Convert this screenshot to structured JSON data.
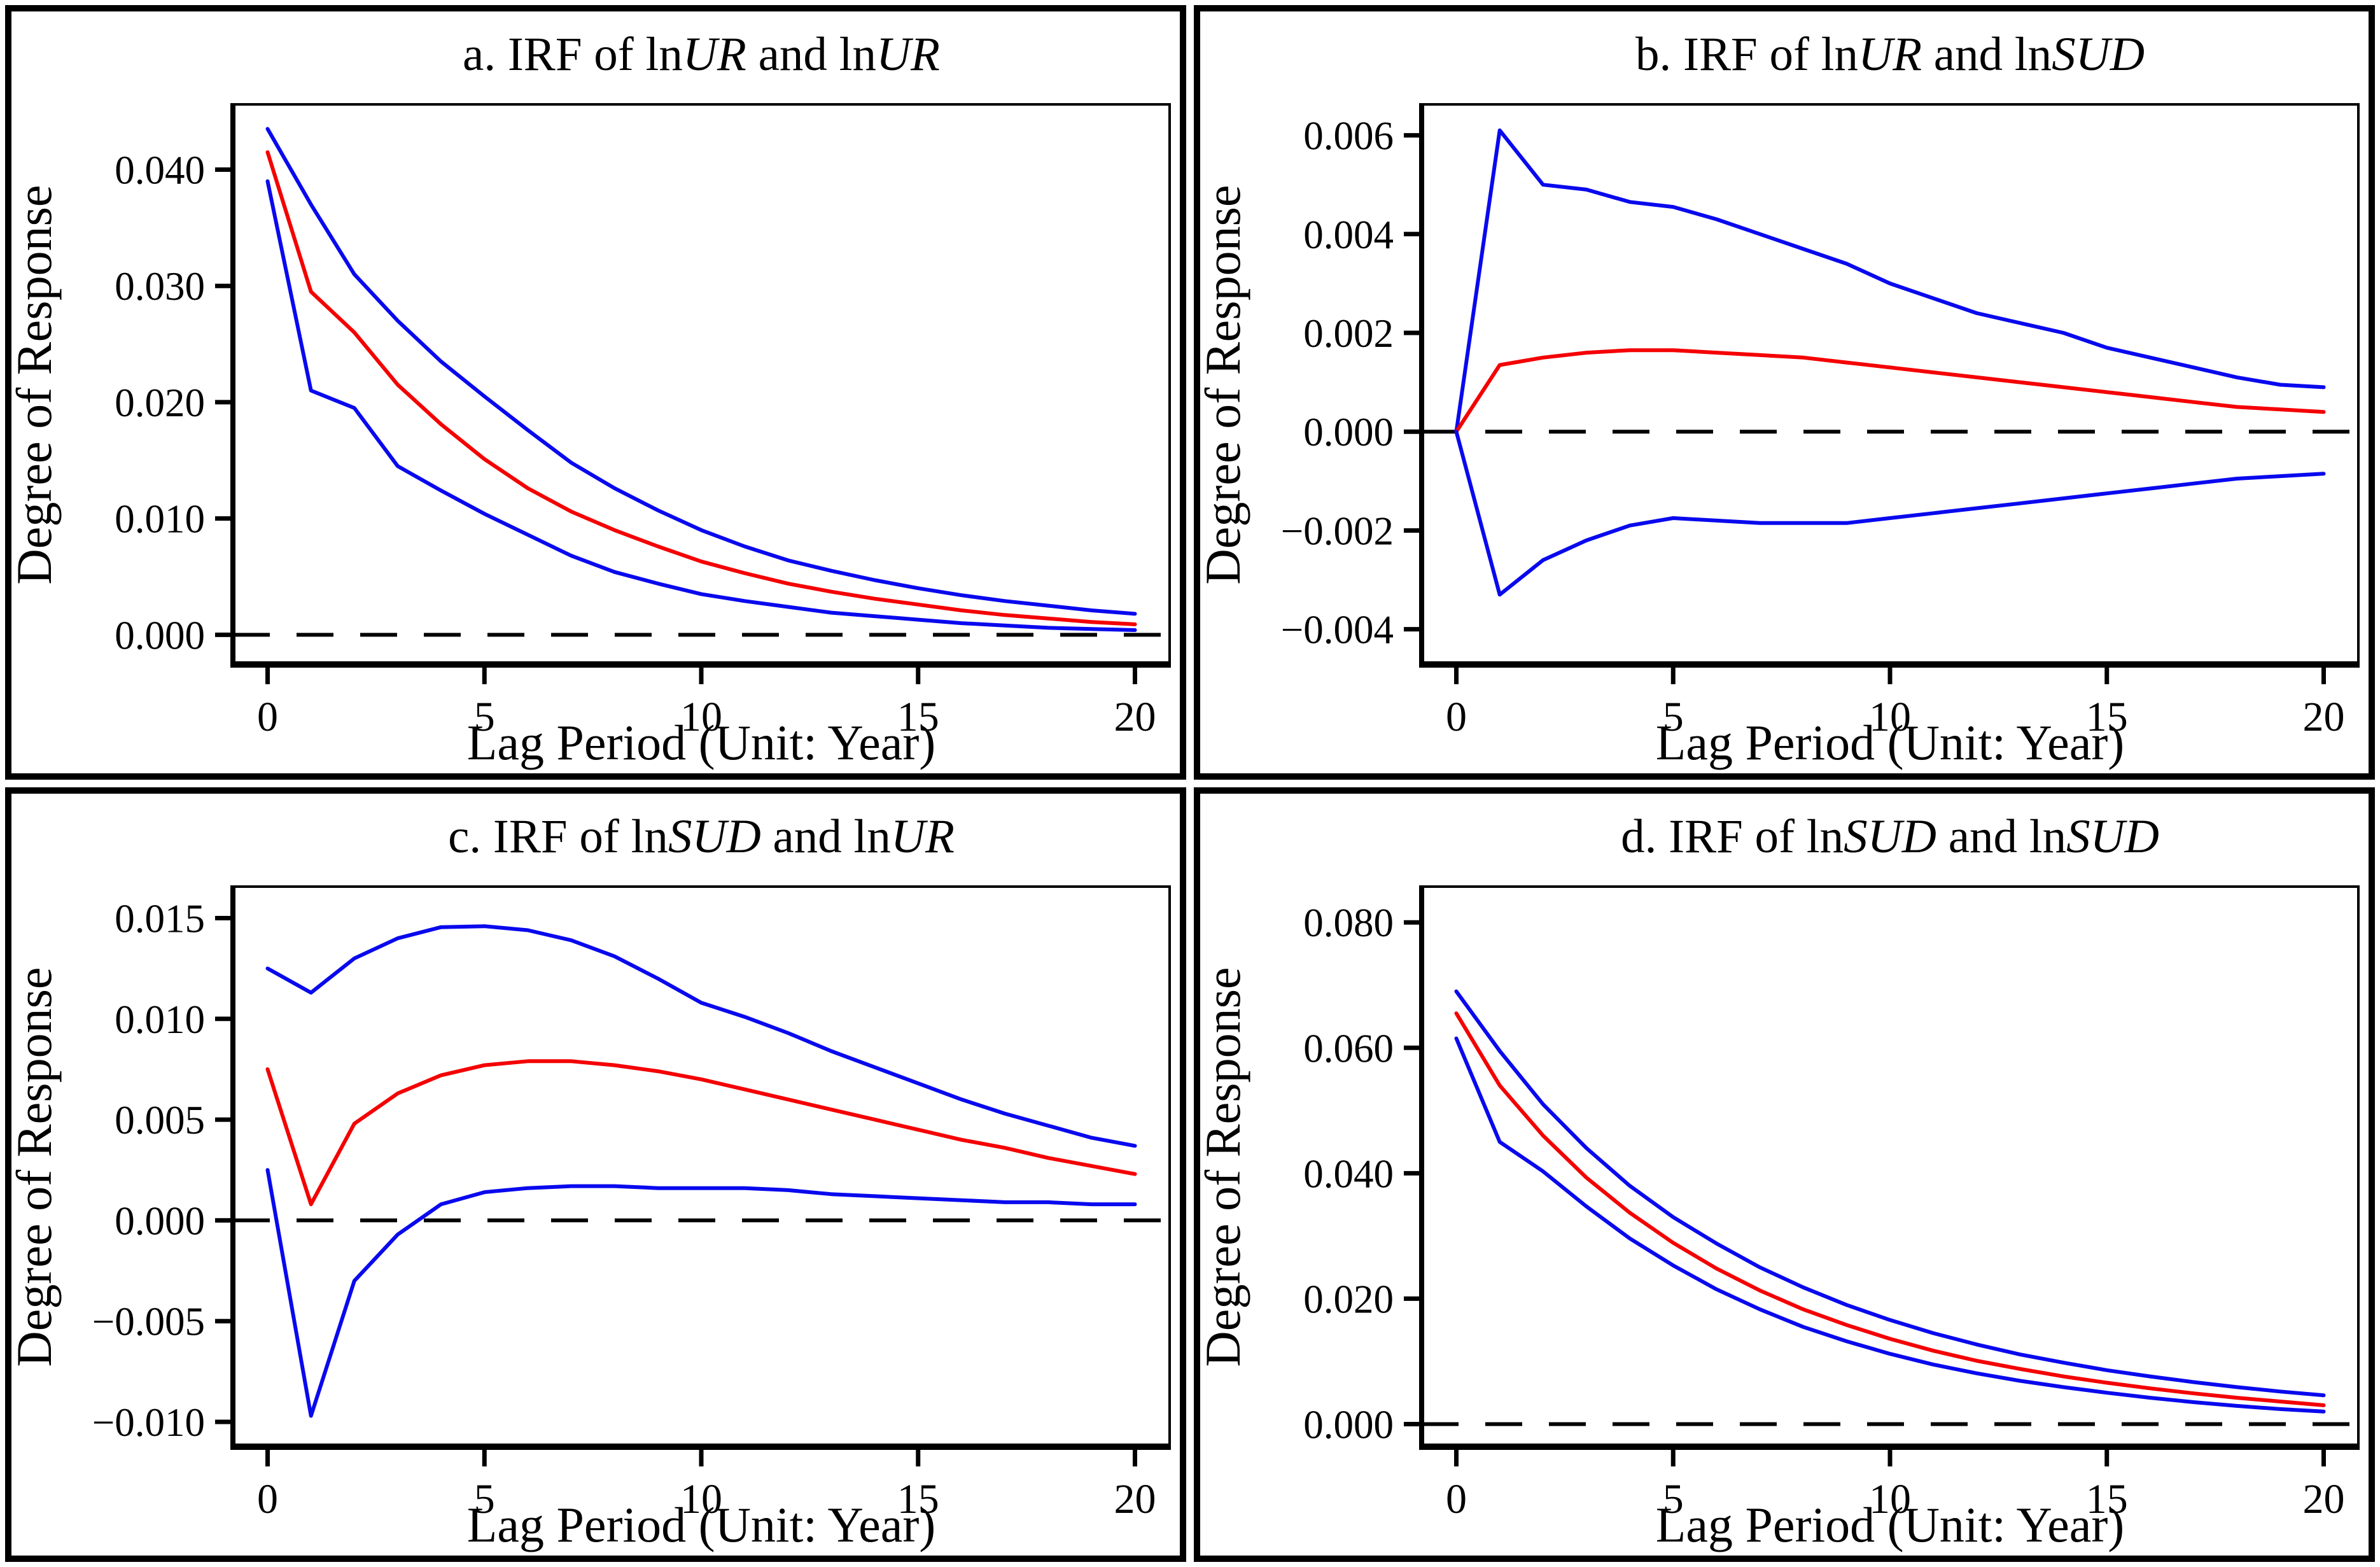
{
  "figure": {
    "name": "Impulse response functions of lnUR and lnSUD",
    "colors": {
      "center": "#f40000",
      "band": "#0909ee",
      "zero_line": "#000000",
      "frame": "#000000",
      "background": "#ffffff"
    }
  },
  "chart_data": [
    {
      "type": "line",
      "panel": "a",
      "title_segments": [
        {
          "text": "a. IRF of ln",
          "italic": false
        },
        {
          "text": "UR",
          "italic": true
        },
        {
          "text": " and ln",
          "italic": false
        },
        {
          "text": "UR",
          "italic": true
        }
      ],
      "xlabel": "Lag Period (Unit: Year)",
      "ylabel": "Degree of Response",
      "x": [
        0,
        1,
        2,
        3,
        4,
        5,
        6,
        7,
        8,
        9,
        10,
        11,
        12,
        13,
        14,
        15,
        16,
        17,
        18,
        19,
        20
      ],
      "xlim": [
        -0.8,
        20.8
      ],
      "ylim": [
        -0.0025,
        0.0455
      ],
      "xticks": [
        0,
        5,
        10,
        15,
        20
      ],
      "xtick_labels": [
        "0",
        "5",
        "10",
        "15",
        "20"
      ],
      "yticks": [
        0.04,
        0.03,
        0.02,
        0.01,
        0.0
      ],
      "ytick_labels": [
        "0.040",
        "0.030",
        "0.020",
        "0.010",
        "0.000"
      ],
      "zero_line_dashed": true,
      "grid": false,
      "legend": null,
      "series": [
        {
          "name": "upper-confidence-band",
          "color": "band",
          "values": [
            0.0435,
            0.037,
            0.031,
            0.027,
            0.0235,
            0.0205,
            0.0176,
            0.0148,
            0.0126,
            0.0107,
            0.009,
            0.0076,
            0.0064,
            0.0055,
            0.0047,
            0.004,
            0.0034,
            0.0029,
            0.0025,
            0.0021,
            0.0018
          ]
        },
        {
          "name": "center-irf",
          "color": "center",
          "values": [
            0.0415,
            0.0295,
            0.026,
            0.0215,
            0.0181,
            0.0151,
            0.0126,
            0.0106,
            0.009,
            0.0076,
            0.0063,
            0.0053,
            0.0044,
            0.0037,
            0.0031,
            0.0026,
            0.0021,
            0.0017,
            0.0014,
            0.0011,
            0.0009
          ]
        },
        {
          "name": "lower-confidence-band",
          "color": "band",
          "values": [
            0.039,
            0.021,
            0.0195,
            0.0145,
            0.0124,
            0.0104,
            0.0086,
            0.0068,
            0.0054,
            0.0044,
            0.0035,
            0.0029,
            0.0024,
            0.0019,
            0.0016,
            0.0013,
            0.001,
            0.0008,
            0.0006,
            0.0005,
            0.0004
          ]
        }
      ]
    },
    {
      "type": "line",
      "panel": "b",
      "title_segments": [
        {
          "text": "b. IRF of ln",
          "italic": false
        },
        {
          "text": "UR",
          "italic": true
        },
        {
          "text": " and ln",
          "italic": false
        },
        {
          "text": "SUD",
          "italic": true
        }
      ],
      "xlabel": "Lag Period (Unit: Year)",
      "ylabel": "Degree of Response",
      "x": [
        0,
        1,
        2,
        3,
        4,
        5,
        6,
        7,
        8,
        9,
        10,
        11,
        12,
        13,
        14,
        15,
        16,
        17,
        18,
        19,
        20
      ],
      "xlim": [
        -0.8,
        20.8
      ],
      "ylim": [
        -0.0047,
        0.0066
      ],
      "xticks": [
        0,
        5,
        10,
        15,
        20
      ],
      "xtick_labels": [
        "0",
        "5",
        "10",
        "15",
        "20"
      ],
      "yticks": [
        0.006,
        0.004,
        0.002,
        0.0,
        -0.002,
        -0.004
      ],
      "ytick_labels": [
        "0.006",
        "0.004",
        "0.002",
        "0.000",
        "−0.002",
        "−0.004"
      ],
      "zero_line_dashed": true,
      "grid": false,
      "legend": null,
      "series": [
        {
          "name": "upper-confidence-band",
          "color": "band",
          "values": [
            0.0,
            0.0061,
            0.005,
            0.0049,
            0.00465,
            0.00455,
            0.0043,
            0.004,
            0.0037,
            0.0034,
            0.003,
            0.0027,
            0.0024,
            0.0022,
            0.002,
            0.0017,
            0.0015,
            0.0013,
            0.0011,
            0.00095,
            0.0009
          ]
        },
        {
          "name": "center-irf",
          "color": "center",
          "values": [
            0.0,
            0.00135,
            0.0015,
            0.0016,
            0.00165,
            0.00165,
            0.0016,
            0.00155,
            0.0015,
            0.0014,
            0.0013,
            0.0012,
            0.0011,
            0.001,
            0.0009,
            0.0008,
            0.0007,
            0.0006,
            0.0005,
            0.00045,
            0.0004
          ]
        },
        {
          "name": "lower-confidence-band",
          "color": "band",
          "values": [
            0.0,
            -0.0033,
            -0.0026,
            -0.0022,
            -0.0019,
            -0.00175,
            -0.0018,
            -0.00185,
            -0.00185,
            -0.00185,
            -0.00175,
            -0.00165,
            -0.00155,
            -0.00145,
            -0.00135,
            -0.00125,
            -0.00115,
            -0.00105,
            -0.00095,
            -0.0009,
            -0.00085
          ]
        }
      ]
    },
    {
      "type": "line",
      "panel": "c",
      "title_segments": [
        {
          "text": "c. IRF of ln",
          "italic": false
        },
        {
          "text": "SUD",
          "italic": true
        },
        {
          "text": " and ln",
          "italic": false
        },
        {
          "text": "UR",
          "italic": true
        }
      ],
      "xlabel": "Lag Period (Unit: Year)",
      "ylabel": "Degree of Response",
      "x": [
        0,
        1,
        2,
        3,
        4,
        5,
        6,
        7,
        8,
        9,
        10,
        11,
        12,
        13,
        14,
        15,
        16,
        17,
        18,
        19,
        20
      ],
      "xlim": [
        -0.8,
        20.8
      ],
      "ylim": [
        -0.0112,
        0.0165
      ],
      "xticks": [
        0,
        5,
        10,
        15,
        20
      ],
      "xtick_labels": [
        "0",
        "5",
        "10",
        "15",
        "20"
      ],
      "yticks": [
        0.015,
        0.01,
        0.005,
        0.0,
        -0.005,
        -0.01
      ],
      "ytick_labels": [
        "0.015",
        "0.010",
        "0.005",
        "0.000",
        "−0.005",
        "−0.010"
      ],
      "zero_line_dashed": true,
      "grid": false,
      "legend": null,
      "series": [
        {
          "name": "upper-confidence-band",
          "color": "band",
          "values": [
            0.0125,
            0.0113,
            0.013,
            0.014,
            0.01455,
            0.0146,
            0.0144,
            0.0139,
            0.0131,
            0.012,
            0.0108,
            0.0101,
            0.0093,
            0.0084,
            0.0076,
            0.0068,
            0.006,
            0.0053,
            0.0047,
            0.0041,
            0.0037
          ]
        },
        {
          "name": "center-irf",
          "color": "center",
          "values": [
            0.0075,
            0.0008,
            0.0048,
            0.0063,
            0.0072,
            0.0077,
            0.0079,
            0.0079,
            0.0077,
            0.0074,
            0.007,
            0.0065,
            0.006,
            0.0055,
            0.005,
            0.0045,
            0.004,
            0.0036,
            0.0031,
            0.0027,
            0.0023
          ]
        },
        {
          "name": "lower-confidence-band",
          "color": "band",
          "values": [
            0.0025,
            -0.0097,
            -0.003,
            -0.0007,
            0.0008,
            0.0014,
            0.0016,
            0.0017,
            0.0017,
            0.0016,
            0.0016,
            0.0016,
            0.0015,
            0.0013,
            0.0012,
            0.0011,
            0.001,
            0.0009,
            0.0009,
            0.0008,
            0.0008
          ]
        }
      ]
    },
    {
      "type": "line",
      "panel": "d",
      "title_segments": [
        {
          "text": "d. IRF of ln",
          "italic": false
        },
        {
          "text": "SUD",
          "italic": true
        },
        {
          "text": " and ln",
          "italic": false
        },
        {
          "text": "SUD",
          "italic": true
        }
      ],
      "xlabel": "Lag Period (Unit: Year)",
      "ylabel": "Degree of Response",
      "x": [
        0,
        1,
        2,
        3,
        4,
        5,
        6,
        7,
        8,
        9,
        10,
        11,
        12,
        13,
        14,
        15,
        16,
        17,
        18,
        19,
        20
      ],
      "xlim": [
        -0.8,
        20.8
      ],
      "ylim": [
        -0.0035,
        0.0855
      ],
      "xticks": [
        0,
        5,
        10,
        15,
        20
      ],
      "xtick_labels": [
        "0",
        "5",
        "10",
        "15",
        "20"
      ],
      "yticks": [
        0.08,
        0.06,
        0.04,
        0.02,
        0.0
      ],
      "ytick_labels": [
        "0.080",
        "0.060",
        "0.040",
        "0.020",
        "0.000"
      ],
      "zero_line_dashed": true,
      "grid": false,
      "legend": null,
      "series": [
        {
          "name": "upper-confidence-band",
          "color": "band",
          "values": [
            0.069,
            0.0595,
            0.051,
            0.044,
            0.038,
            0.033,
            0.0288,
            0.025,
            0.0218,
            0.019,
            0.0166,
            0.0145,
            0.0127,
            0.0111,
            0.0098,
            0.0086,
            0.0076,
            0.0067,
            0.0059,
            0.0052,
            0.0046
          ]
        },
        {
          "name": "center-irf",
          "color": "center",
          "values": [
            0.0655,
            0.054,
            0.046,
            0.0393,
            0.0337,
            0.0289,
            0.0248,
            0.0213,
            0.0183,
            0.0158,
            0.0136,
            0.0117,
            0.0101,
            0.0088,
            0.0076,
            0.0066,
            0.0057,
            0.0049,
            0.0042,
            0.0036,
            0.003
          ]
        },
        {
          "name": "lower-confidence-band",
          "color": "band",
          "values": [
            0.0615,
            0.045,
            0.0403,
            0.0347,
            0.0296,
            0.0253,
            0.0215,
            0.0183,
            0.0155,
            0.0132,
            0.0112,
            0.0095,
            0.0081,
            0.0069,
            0.0059,
            0.005,
            0.0042,
            0.0035,
            0.0029,
            0.0024,
            0.002
          ]
        }
      ]
    }
  ]
}
